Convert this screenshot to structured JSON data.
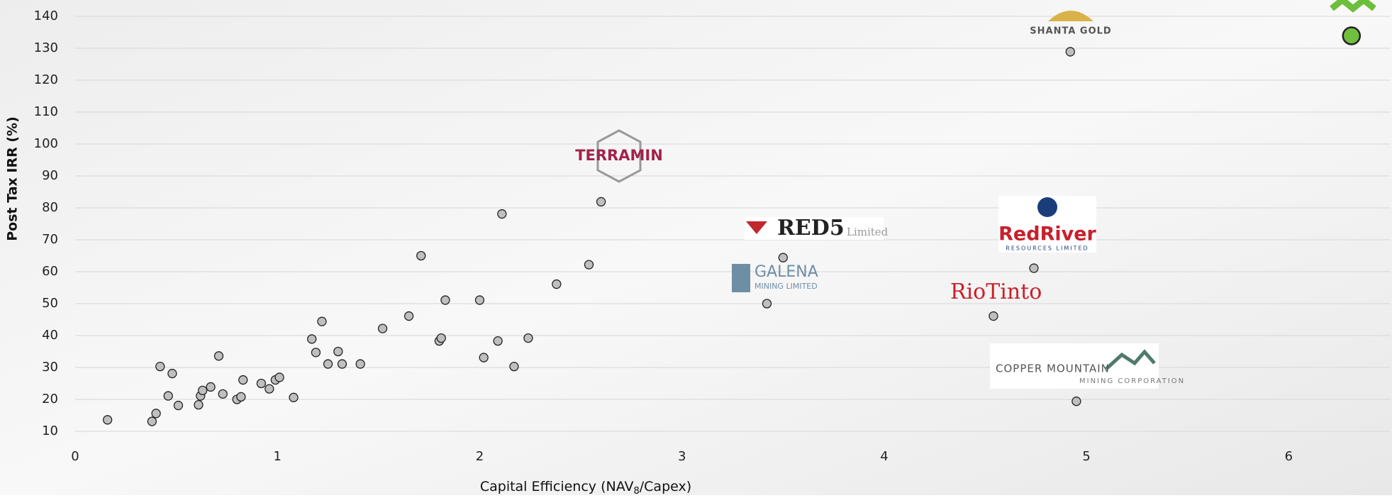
{
  "chart_data": {
    "type": "scatter",
    "xlabel_parts": [
      "Capital Efficiency (NAV",
      "8",
      "/Capex)"
    ],
    "ylabel": "Post Tax IRR (%)",
    "xlim": [
      0,
      6.5
    ],
    "xticks": [
      0,
      1,
      2,
      3,
      4,
      5,
      6
    ],
    "ylim": [
      10,
      140
    ],
    "yticks": [
      10,
      20,
      30,
      40,
      50,
      60,
      70,
      80,
      90,
      100,
      110,
      120,
      130,
      140
    ],
    "grid": true,
    "series": [
      {
        "color": "#bfbfbf",
        "x": [
          0.16,
          0.38,
          0.4,
          0.42,
          0.46,
          0.48,
          0.51,
          0.61,
          0.62,
          0.63,
          0.67,
          0.71,
          0.73,
          0.8,
          0.82,
          0.83,
          0.92,
          0.96,
          0.99,
          1.01,
          1.08,
          1.17,
          1.19,
          1.22,
          1.25,
          1.3,
          1.32,
          1.41,
          1.52,
          1.65,
          1.71,
          1.8,
          1.81,
          1.83,
          2.0,
          2.02,
          2.09,
          2.11,
          2.17,
          2.24,
          2.38,
          2.54,
          2.6,
          3.42,
          3.5,
          4.54,
          4.74,
          4.92,
          4.95
        ],
        "values": [
          13.6,
          13.1,
          15.6,
          30.3,
          21.1,
          28.1,
          18.1,
          18.3,
          21.1,
          22.8,
          23.9,
          33.6,
          21.7,
          20.0,
          20.8,
          26.1,
          25.0,
          23.3,
          26.1,
          26.9,
          20.6,
          38.9,
          34.7,
          44.4,
          31.1,
          35.0,
          31.1,
          31.1,
          42.2,
          46.1,
          65.0,
          38.3,
          39.2,
          51.1,
          51.1,
          33.1,
          38.3,
          78.1,
          30.3,
          39.2,
          56.1,
          62.2,
          81.9,
          50.0,
          64.4,
          46.1,
          61.1,
          128.9,
          19.4
        ]
      },
      {
        "color": "#70c040",
        "x": [
          6.31
        ],
        "values": [
          133.9
        ]
      }
    ],
    "annotations": {
      "shanta": "SHANTA GOLD",
      "terramin": "TERRAMIN",
      "red5": "RED5",
      "red5_sub": "Limited",
      "galena": "GALENA",
      "galena_sub": "MINING LIMITED",
      "redriver": "RedRiver",
      "redriver_sub": "RESOURCES LIMITED",
      "riotinto": "RioTinto",
      "copper": "COPPER MOUNTAIN",
      "copper_sub": "MINING CORPORATION"
    }
  }
}
